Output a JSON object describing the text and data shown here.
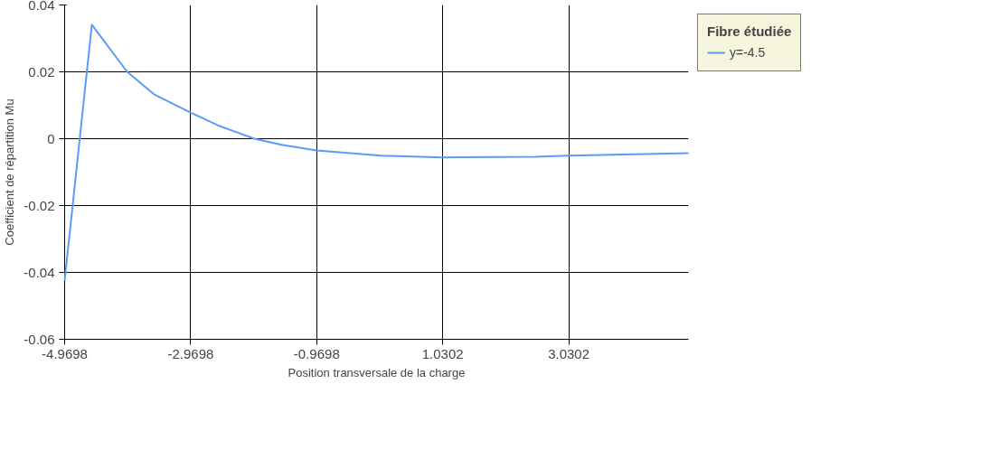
{
  "chart_data": {
    "type": "line",
    "xlabel": "Position transversale de la charge",
    "ylabel": "Coefficient de répartition Mu",
    "legend_title": "Fibre étudiée",
    "legend": "top right",
    "grid": true,
    "xlim": [
      -4.9698,
      4.93
    ],
    "xticks": [
      -4.9698,
      -2.9698,
      -0.9698,
      1.0302,
      3.0302
    ],
    "ylim": [
      -0.06,
      0.04
    ],
    "yticks": [
      {
        "value": -0.06,
        "label": "-0.06"
      },
      {
        "value": -0.04,
        "label": "-0.04"
      },
      {
        "value": -0.02,
        "label": "-0.02"
      },
      {
        "value": 0,
        "label": "0"
      },
      {
        "value": 0.02,
        "label": "0.02"
      },
      {
        "value": 0.04,
        "label": "0.04"
      }
    ],
    "series": [
      {
        "name": "y=-4.5",
        "color": "#5b9bf8",
        "x": [
          -4.9698,
          -4.538,
          -3.977,
          -3.545,
          -2.9698,
          -2.538,
          -1.96,
          -1.53,
          -0.9698,
          0.05,
          1.0302,
          2.5,
          3.0302,
          4.93
        ],
        "values": [
          -0.0425,
          0.0341,
          0.02,
          0.0132,
          0.0078,
          0.004,
          0,
          -0.0018,
          -0.0035,
          -0.0051,
          -0.0056,
          -0.0054,
          -0.0051,
          -0.0043
        ]
      }
    ]
  }
}
